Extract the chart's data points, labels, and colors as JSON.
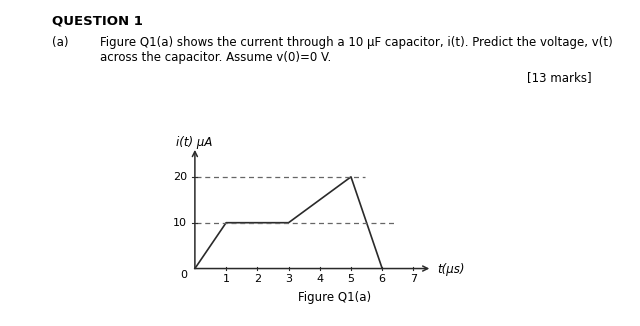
{
  "question_title": "QUESTION 1",
  "question_part": "(a)",
  "question_text_line1": "Figure Q1(a) shows the current through a 10 μF capacitor, i(t). Predict the voltage, v(t)",
  "question_text_line2": "across the capacitor. Assume v(0)=0 V.",
  "marks": "[13 marks]",
  "figure_caption": "Figure Q1(a)",
  "ylabel": "i(t) μA",
  "xlabel": "t(μs)",
  "waveform_x": [
    0,
    1,
    3,
    5,
    6
  ],
  "waveform_y": [
    0,
    10,
    10,
    20,
    0
  ],
  "dashed_y1": 10,
  "dashed_y2": 20,
  "xlim": [
    0,
    7.5
  ],
  "ylim": [
    0,
    28
  ],
  "xticks": [
    1,
    2,
    3,
    4,
    5,
    6,
    7
  ],
  "yticks": [
    10,
    20
  ],
  "background_color": "#ffffff",
  "line_color": "#2a2a2a",
  "dashed_color": "#666666",
  "fontsize_body": 8.5,
  "fontsize_title": 9.5,
  "fontsize_axis": 8.5,
  "fontsize_tick": 8,
  "fontsize_caption": 8.5
}
